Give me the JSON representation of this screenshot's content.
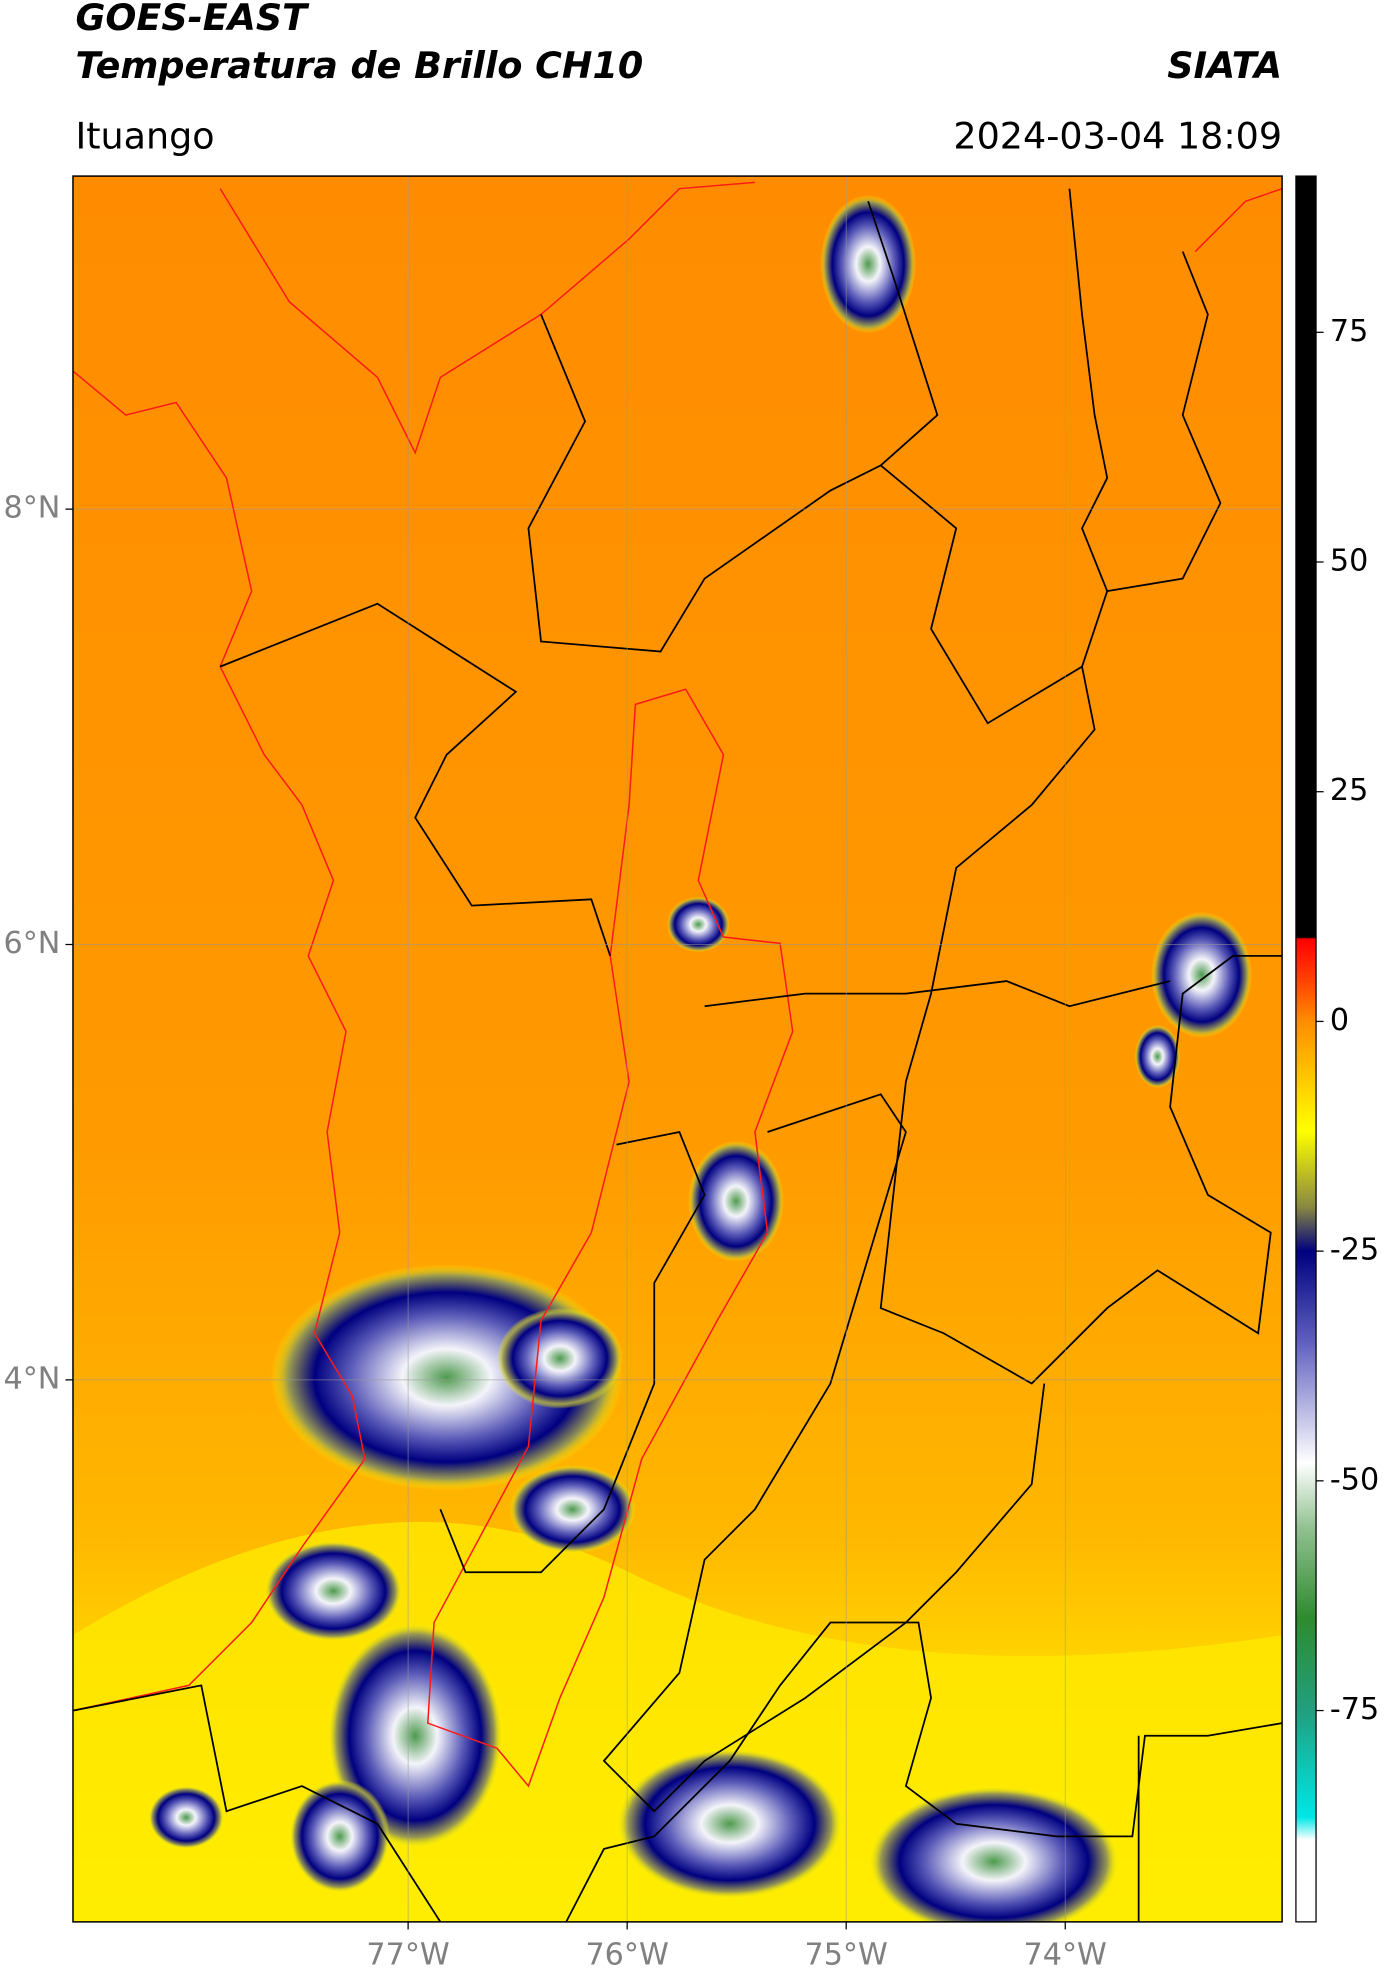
{
  "header": {
    "title": "GOES-EAST",
    "subtitle": "Temperatura de Brillo CH10",
    "source": "SIATA",
    "location": "Ituango",
    "timestamp": "2024-03-04 18:09"
  },
  "map": {
    "xlim": [
      -78.53,
      -73.01
    ],
    "ylim": [
      1.51,
      9.53
    ],
    "xticks": [
      {
        "value": -77,
        "label": "77°W"
      },
      {
        "value": -76,
        "label": "76°W"
      },
      {
        "value": -75,
        "label": "75°W"
      },
      {
        "value": -74,
        "label": "74°W"
      }
    ],
    "yticks": [
      {
        "value": 8,
        "label": "8°N"
      },
      {
        "value": 6,
        "label": "6°N"
      },
      {
        "value": 4,
        "label": "4°N"
      }
    ],
    "grid": true
  },
  "colorbar": {
    "lim": [
      -98,
      92
    ],
    "ticks": [
      -75,
      -50,
      -25,
      0,
      25,
      50,
      75
    ]
  }
}
